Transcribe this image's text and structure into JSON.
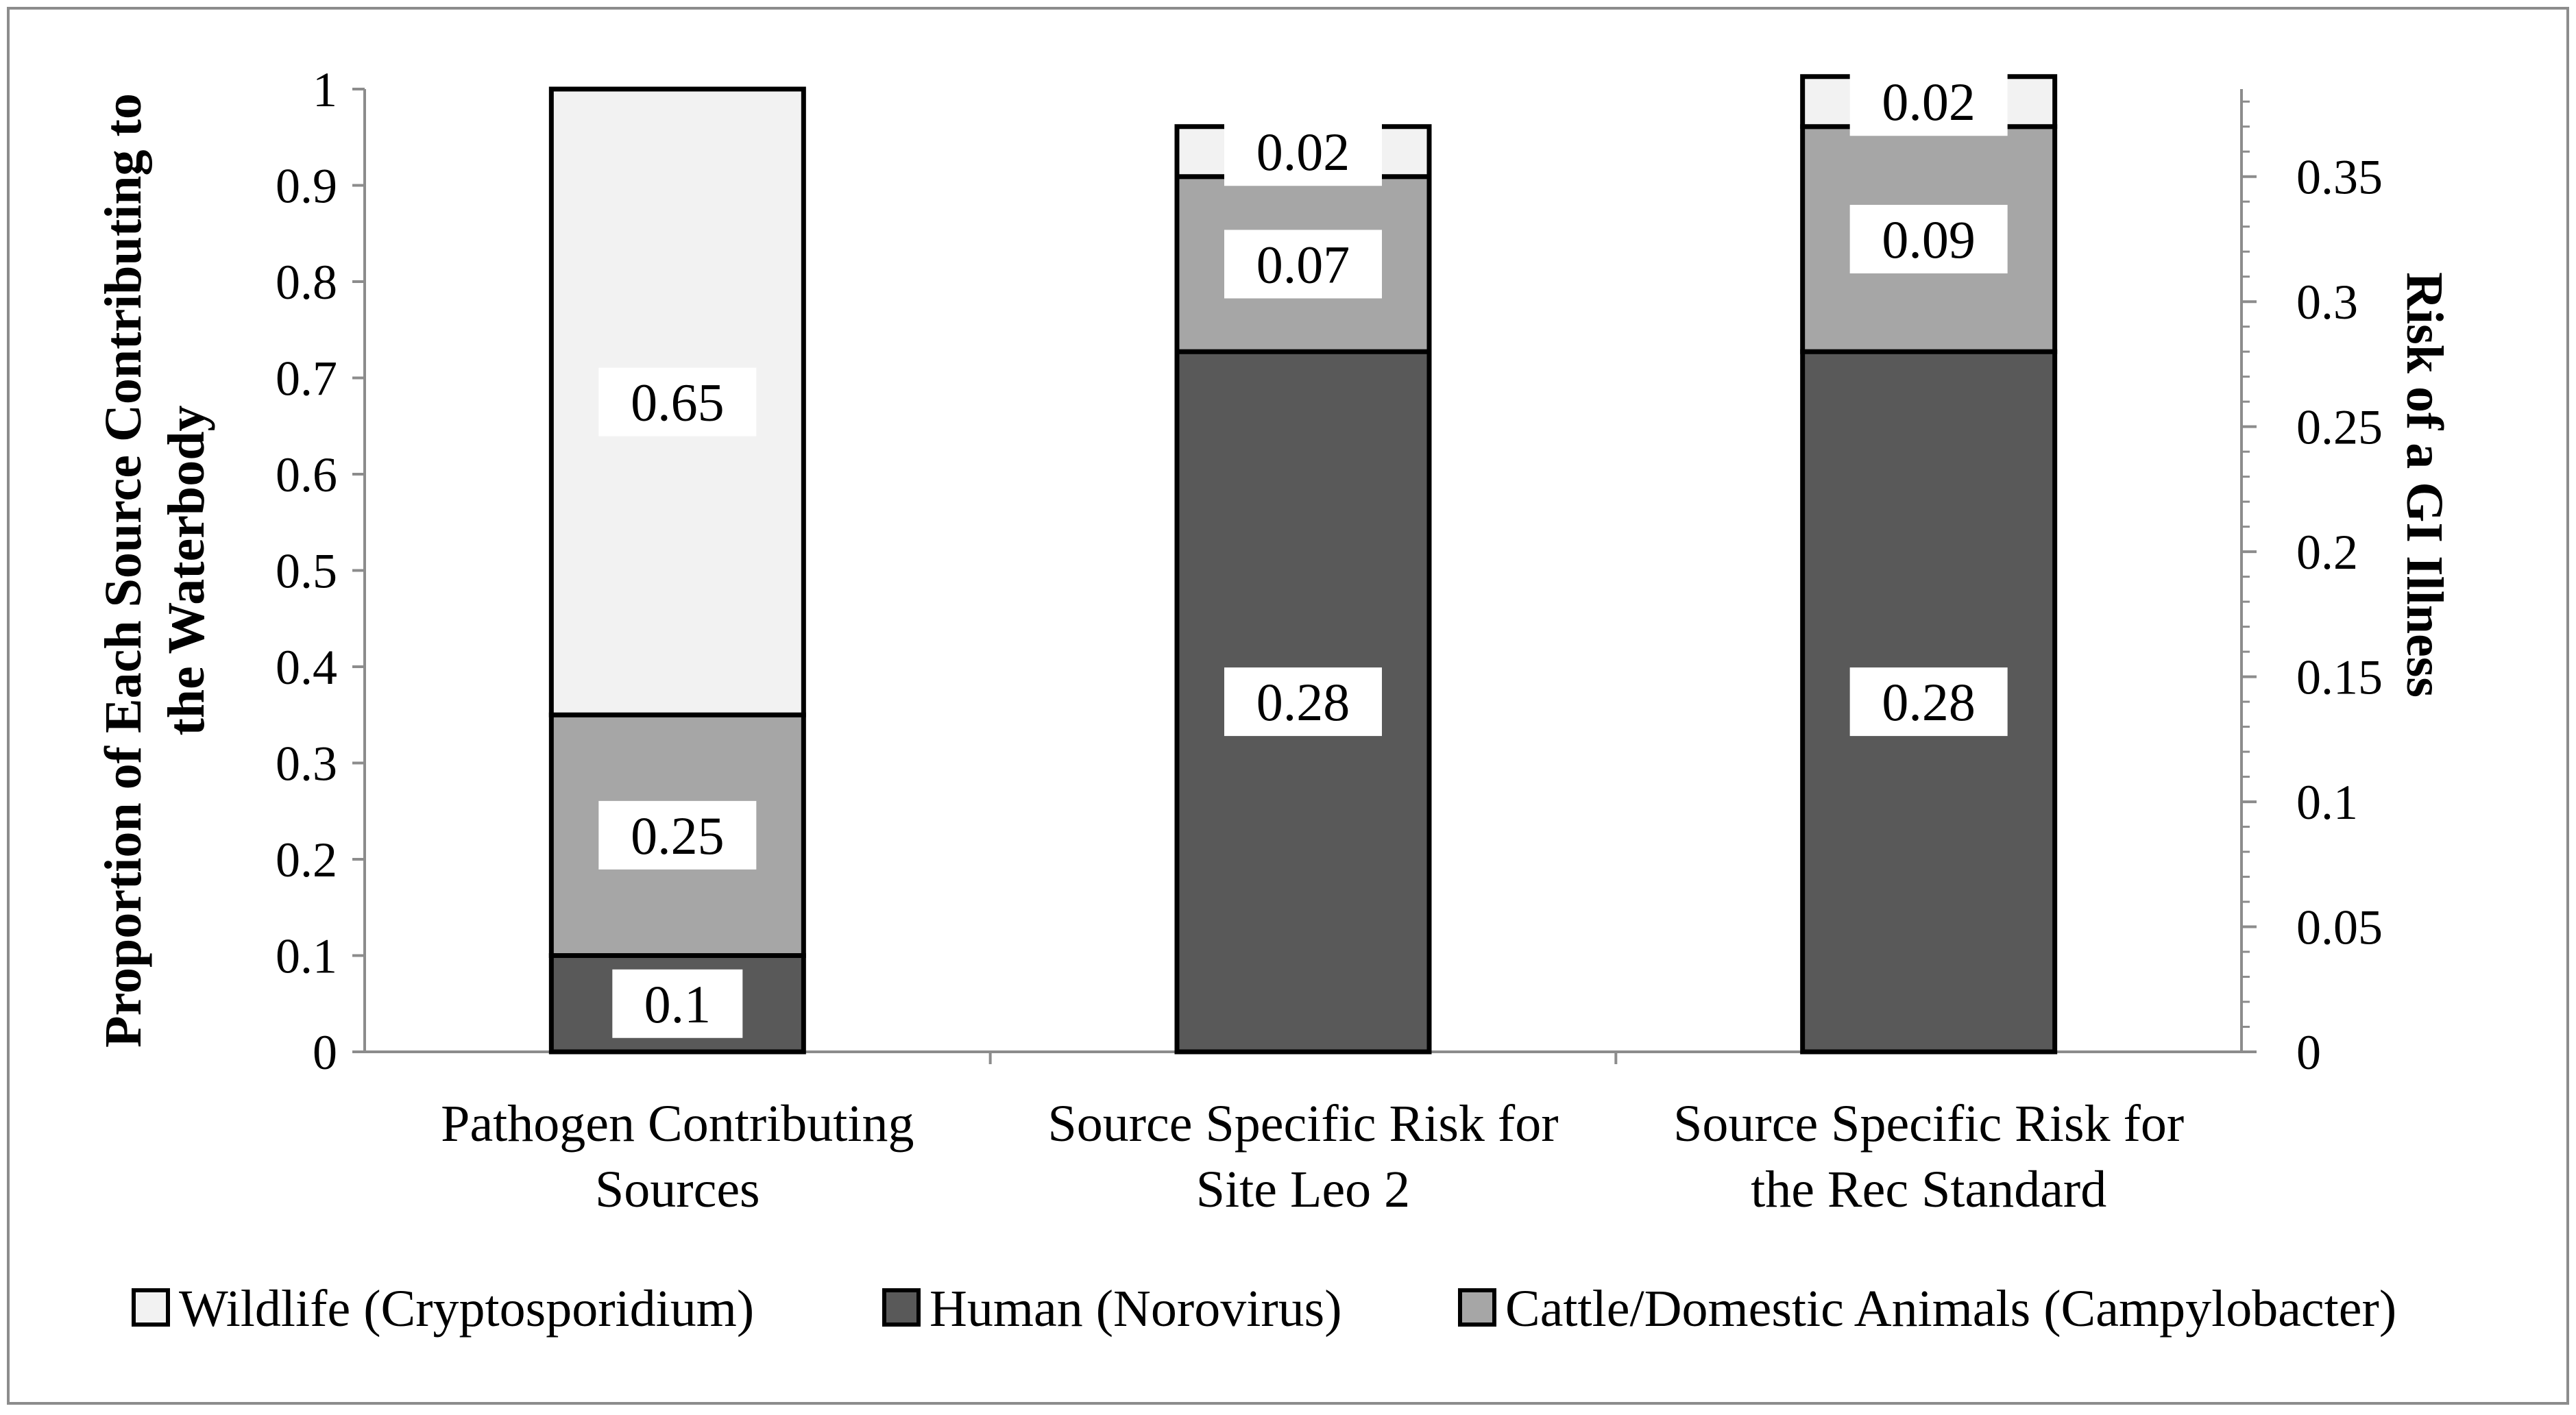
{
  "chart_data": {
    "type": "bar",
    "stacked": true,
    "categories": [
      [
        "Pathogen Contributing",
        "Sources"
      ],
      [
        "Source Specific Risk for",
        "Site Leo 2"
      ],
      [
        "Source Specific Risk for",
        "the Rec Standard"
      ]
    ],
    "series": [
      {
        "name": "Human (Norovirus)",
        "color": "#595959",
        "values": [
          0.1,
          0.28,
          0.28
        ],
        "labels": [
          "0.1",
          "0.28",
          "0.28"
        ],
        "axis": [
          "left",
          "right",
          "right"
        ]
      },
      {
        "name": "Cattle/Domestic Animals (Campylobacter)",
        "color": "#a6a6a6",
        "values": [
          0.25,
          0.07,
          0.09
        ],
        "labels": [
          "0.25",
          "0.07",
          "0.09"
        ],
        "axis": [
          "left",
          "right",
          "right"
        ]
      },
      {
        "name": "Wildlife (Cryptosporidium)",
        "color": "#f2f2f2",
        "values": [
          0.65,
          0.02,
          0.02
        ],
        "labels": [
          "0.65",
          "0.02",
          "0.02"
        ],
        "axis": [
          "left",
          "right",
          "right"
        ]
      }
    ],
    "legend_order": [
      "Wildlife (Cryptosporidium)",
      "Human (Norovirus)",
      "Cattle/Domestic Animals (Campylobacter)"
    ],
    "ylabel": [
      "Proportion of Each Source Contributing to",
      "the Waterbody"
    ],
    "ylim": [
      0,
      1
    ],
    "yticks": [
      "0",
      "0.1",
      "0.2",
      "0.3",
      "0.4",
      "0.5",
      "0.6",
      "0.7",
      "0.8",
      "0.9",
      "1"
    ],
    "ylabel_right": "Risk of a GI Illness",
    "ylim_right": [
      0,
      0.385
    ],
    "yticks_right": [
      "0",
      "0.05",
      "0.1",
      "0.15",
      "0.2",
      "0.25",
      "0.3",
      "0.35"
    ],
    "legend_position": "bottom",
    "grid": false
  }
}
